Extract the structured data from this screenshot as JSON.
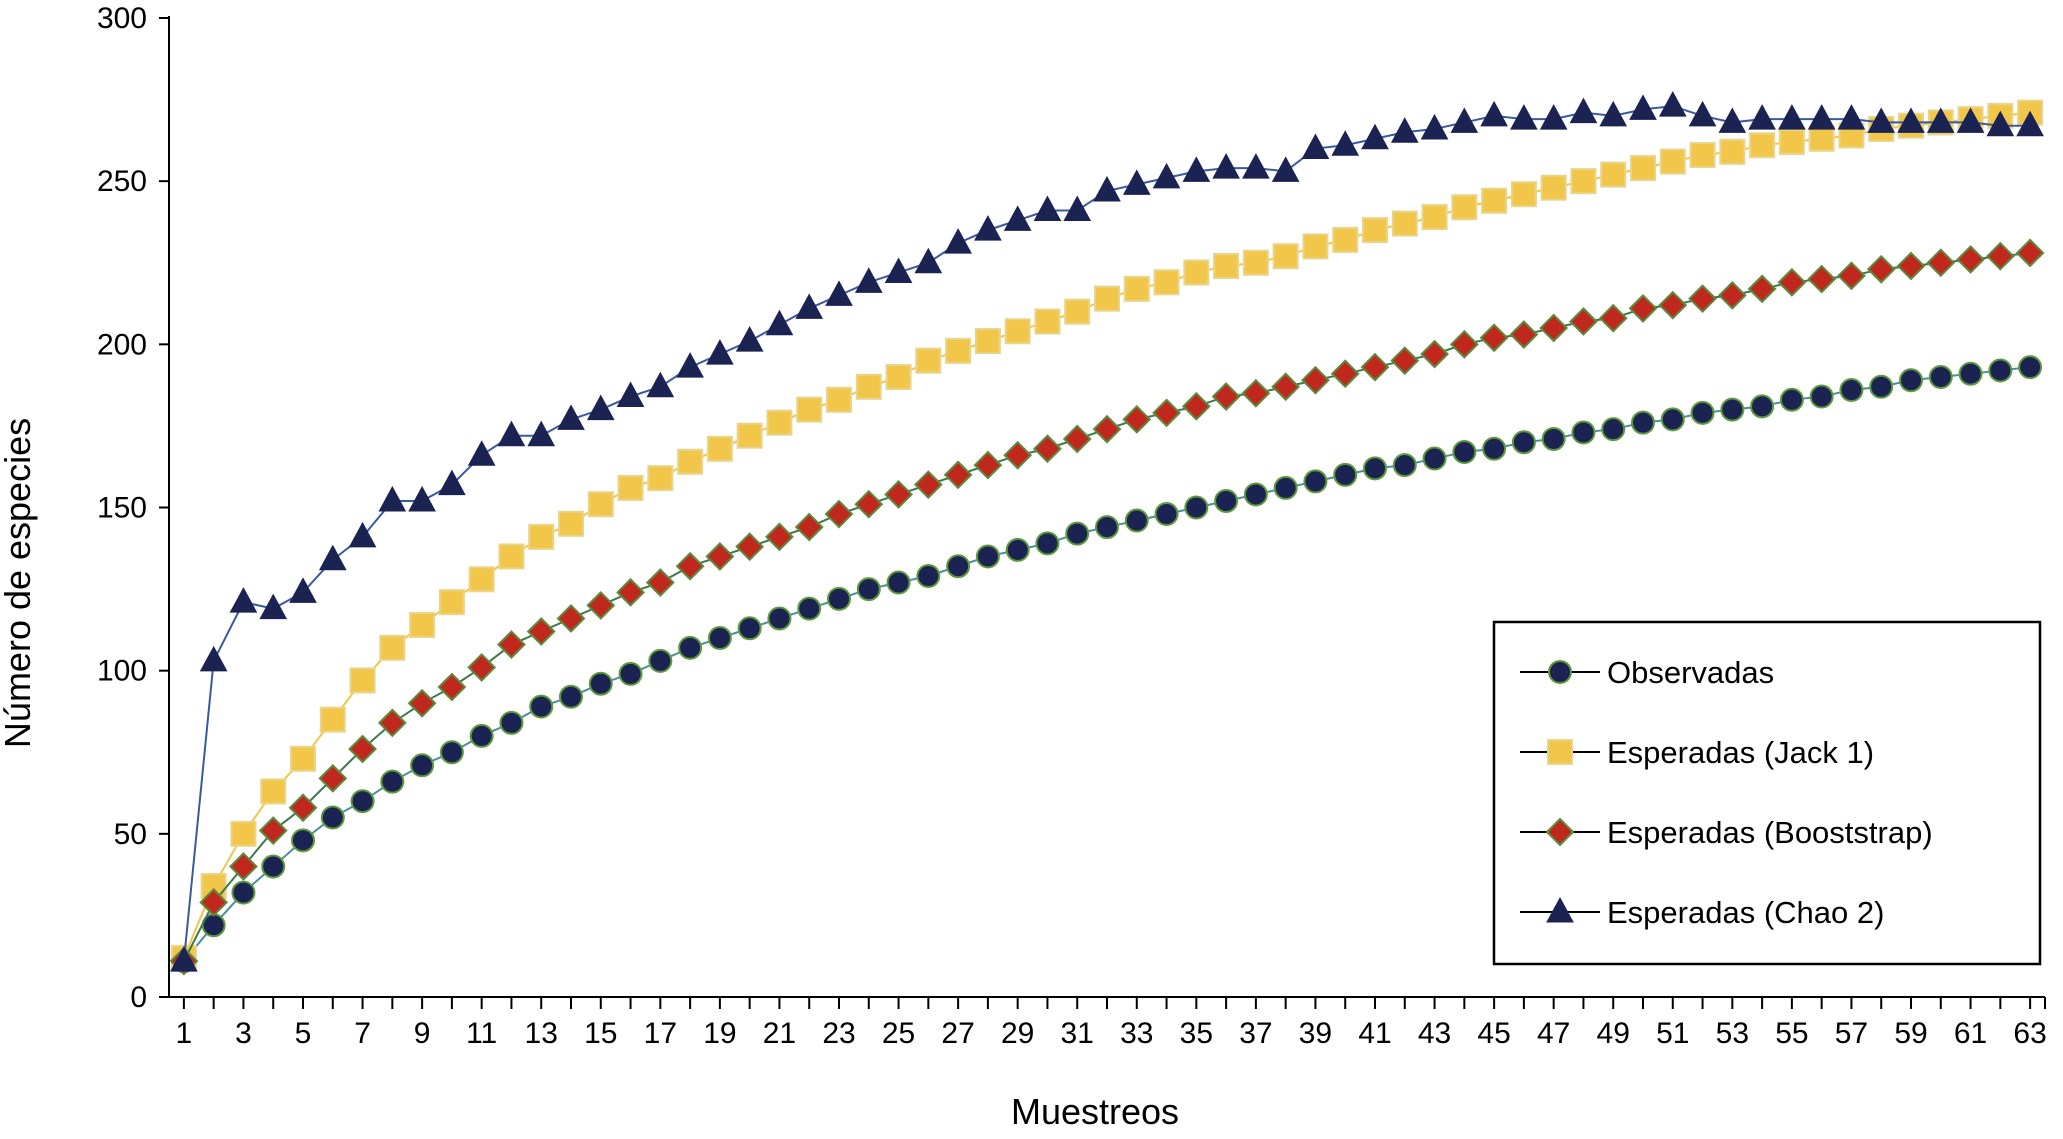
{
  "chart_data": {
    "type": "line",
    "title": "",
    "xlabel": "Muestreos",
    "ylabel": "Número de especies",
    "x": [
      1,
      2,
      3,
      4,
      5,
      6,
      7,
      8,
      9,
      10,
      11,
      12,
      13,
      14,
      15,
      16,
      17,
      18,
      19,
      20,
      21,
      22,
      23,
      24,
      25,
      26,
      27,
      28,
      29,
      30,
      31,
      32,
      33,
      34,
      35,
      36,
      37,
      38,
      39,
      40,
      41,
      42,
      43,
      44,
      45,
      46,
      47,
      48,
      49,
      50,
      51,
      52,
      53,
      54,
      55,
      56,
      57,
      58,
      59,
      60,
      61,
      62,
      63
    ],
    "xticks": [
      1,
      3,
      5,
      7,
      9,
      11,
      13,
      15,
      17,
      19,
      21,
      23,
      25,
      27,
      29,
      31,
      33,
      35,
      37,
      39,
      41,
      43,
      45,
      47,
      49,
      51,
      53,
      55,
      57,
      59,
      61,
      63
    ],
    "xlim": [
      0.5,
      63.5
    ],
    "ylim": [
      0,
      300
    ],
    "yticks": [
      0,
      50,
      100,
      150,
      200,
      250,
      300
    ],
    "grid": false,
    "legend_position": "bottom-right",
    "series": [
      {
        "name": "Observadas",
        "marker": "circle",
        "color": "#1b2352",
        "line_color": "#4a8f9a",
        "values": [
          11,
          22,
          32,
          40,
          48,
          55,
          60,
          66,
          71,
          75,
          80,
          84,
          89,
          92,
          96,
          99,
          103,
          107,
          110,
          113,
          116,
          119,
          122,
          125,
          127,
          129,
          132,
          135,
          137,
          139,
          142,
          144,
          146,
          148,
          150,
          152,
          154,
          156,
          158,
          160,
          162,
          163,
          165,
          167,
          168,
          170,
          171,
          173,
          174,
          176,
          177,
          179,
          180,
          181,
          183,
          184,
          186,
          187,
          189,
          190,
          191,
          192,
          193
        ]
      },
      {
        "name": "Esperadas (Jack 1)",
        "marker": "square",
        "color": "#f2c649",
        "line_color": "#f2c649",
        "values": [
          12,
          34,
          50,
          63,
          73,
          85,
          97,
          107,
          114,
          121,
          128,
          135,
          141,
          145,
          151,
          156,
          159,
          164,
          168,
          172,
          176,
          180,
          183,
          187,
          190,
          195,
          198,
          201,
          204,
          207,
          210,
          214,
          217,
          219,
          222,
          224,
          225,
          227,
          230,
          232,
          235,
          237,
          239,
          242,
          244,
          246,
          248,
          250,
          252,
          254,
          256,
          258,
          259,
          261,
          262,
          263,
          264,
          266,
          267,
          268,
          269,
          270,
          271
        ]
      },
      {
        "name": "Esperadas (Booststrap)",
        "marker": "diamond",
        "color": "#c0281e",
        "line_color": "#3d7a4a",
        "values": [
          11,
          29,
          40,
          51,
          58,
          67,
          76,
          84,
          90,
          95,
          101,
          108,
          112,
          116,
          120,
          124,
          127,
          132,
          135,
          138,
          141,
          144,
          148,
          151,
          154,
          157,
          160,
          163,
          166,
          168,
          171,
          174,
          177,
          179,
          181,
          184,
          185,
          187,
          189,
          191,
          193,
          195,
          197,
          200,
          202,
          203,
          205,
          207,
          208,
          211,
          212,
          214,
          215,
          217,
          219,
          220,
          221,
          223,
          224,
          225,
          226,
          227,
          228
        ]
      },
      {
        "name": "Esperadas (Chao 2)",
        "marker": "triangle",
        "color": "#1b2352",
        "line_color": "#3a5aa0",
        "values": [
          11,
          103,
          121,
          119,
          124,
          134,
          141,
          152,
          152,
          157,
          166,
          172,
          172,
          177,
          180,
          184,
          187,
          193,
          197,
          201,
          206,
          211,
          215,
          219,
          222,
          225,
          231,
          235,
          238,
          241,
          241,
          247,
          249,
          251,
          253,
          254,
          254,
          253,
          260,
          261,
          263,
          265,
          266,
          268,
          270,
          269,
          269,
          271,
          270,
          272,
          273,
          270,
          268,
          269,
          269,
          269,
          269,
          268,
          268,
          268,
          268,
          267,
          267
        ]
      }
    ]
  }
}
